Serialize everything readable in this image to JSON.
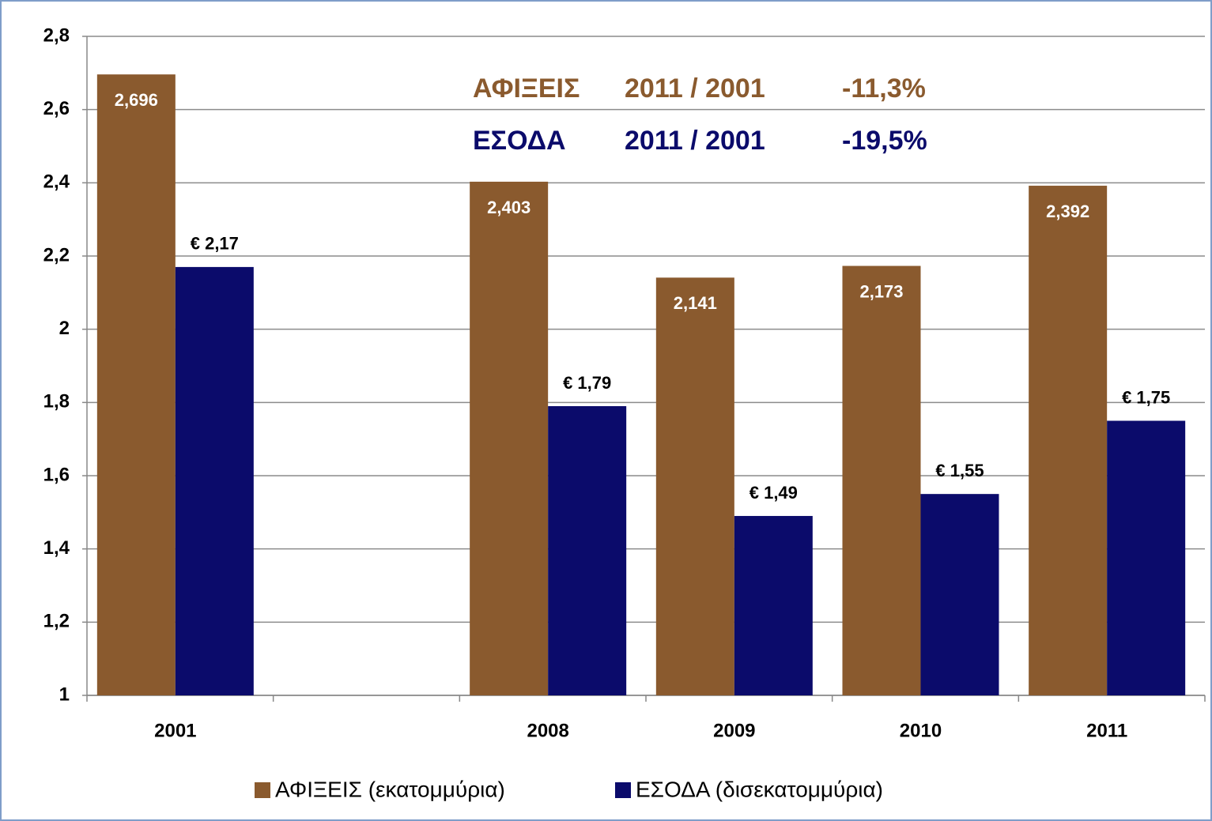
{
  "chart_data": {
    "type": "bar",
    "categories": [
      "2001",
      null,
      "2008",
      "2009",
      "2010",
      "2011"
    ],
    "series": [
      {
        "name": "ΑΦΙΞΕΙΣ (εκατομμύρια)",
        "color": "#8a5a2e",
        "values": [
          2.696,
          null,
          2.403,
          2.141,
          2.173,
          2.392
        ],
        "value_labels": [
          "2,696",
          null,
          "2,403",
          "2,141",
          "2,173",
          "2,392"
        ]
      },
      {
        "name": "ΕΣΟΔΑ (δισεκατομμύρια)",
        "color": "#0b0b6b",
        "values": [
          2.17,
          null,
          1.79,
          1.49,
          1.55,
          1.75
        ],
        "value_labels": [
          "€ 2,17",
          null,
          "€ 1,79",
          "€ 1,49",
          "€ 1,55",
          "€ 1,75"
        ]
      }
    ],
    "annotations": [
      {
        "parts": [
          "ΑΦΙΞΕΙΣ",
          "2011 / 2001",
          "-11,3%"
        ],
        "color": "#8a5a2e"
      },
      {
        "parts": [
          "ΕΣΟΔΑ",
          "2011 / 2001",
          "-19,5%"
        ],
        "color": "#0b0b6b"
      }
    ],
    "ylim": [
      1,
      2.8
    ],
    "yticks": [
      1,
      {
        "value": 1.2,
        "label": "1,2"
      },
      {
        "value": 1.4,
        "label": "1,4"
      },
      {
        "value": 1.6,
        "label": "1,6"
      },
      {
        "value": 1.8,
        "label": "1,8"
      },
      2,
      {
        "value": 2.2,
        "label": "2,2"
      },
      {
        "value": 2.4,
        "label": "2,4"
      },
      {
        "value": 2.6,
        "label": "2,6"
      },
      {
        "value": 2.8,
        "label": "2,8"
      }
    ],
    "grid": true,
    "legend": "bottom"
  }
}
